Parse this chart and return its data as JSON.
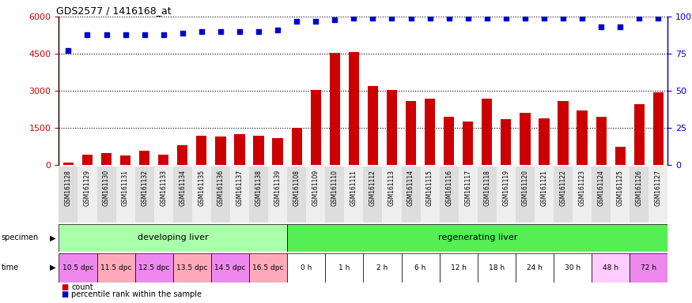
{
  "title": "GDS2577 / 1416168_at",
  "samples": [
    "GSM161128",
    "GSM161129",
    "GSM161130",
    "GSM161131",
    "GSM161132",
    "GSM161133",
    "GSM161134",
    "GSM161135",
    "GSM161136",
    "GSM161137",
    "GSM161138",
    "GSM161139",
    "GSM161108",
    "GSM161109",
    "GSM161110",
    "GSM161111",
    "GSM161112",
    "GSM161113",
    "GSM161114",
    "GSM161115",
    "GSM161116",
    "GSM161117",
    "GSM161118",
    "GSM161119",
    "GSM161120",
    "GSM161121",
    "GSM161122",
    "GSM161123",
    "GSM161124",
    "GSM161125",
    "GSM161126",
    "GSM161127"
  ],
  "counts": [
    120,
    420,
    500,
    380,
    580,
    430,
    800,
    1200,
    1150,
    1250,
    1200,
    1100,
    1500,
    3050,
    4550,
    4580,
    3200,
    3050,
    2600,
    2700,
    1950,
    1750,
    2700,
    1850,
    2100,
    1900,
    2600,
    2200,
    1950,
    750,
    2450,
    2950
  ],
  "percentile_ranks": [
    77,
    88,
    88,
    88,
    88,
    88,
    89,
    90,
    90,
    90,
    90,
    91,
    97,
    97,
    98,
    99,
    99,
    99,
    99,
    99,
    99,
    99,
    99,
    99,
    99,
    99,
    99,
    99,
    93,
    93,
    99,
    99
  ],
  "specimen_groups": [
    {
      "label": "developing liver",
      "color": "#aaffaa",
      "start": 0,
      "end": 12
    },
    {
      "label": "regenerating liver",
      "color": "#55ee55",
      "start": 12,
      "end": 32
    }
  ],
  "time_labels": [
    {
      "label": "10.5 dpc",
      "start": 0,
      "end": 2,
      "color": "#ee88ee"
    },
    {
      "label": "11.5 dpc",
      "start": 2,
      "end": 4,
      "color": "#ffaabb"
    },
    {
      "label": "12.5 dpc",
      "start": 4,
      "end": 6,
      "color": "#ee88ee"
    },
    {
      "label": "13.5 dpc",
      "start": 6,
      "end": 8,
      "color": "#ffaabb"
    },
    {
      "label": "14.5 dpc",
      "start": 8,
      "end": 10,
      "color": "#ee88ee"
    },
    {
      "label": "16.5 dpc",
      "start": 10,
      "end": 12,
      "color": "#ffaabb"
    },
    {
      "label": "0 h",
      "start": 12,
      "end": 14,
      "color": "#ffffff"
    },
    {
      "label": "1 h",
      "start": 14,
      "end": 16,
      "color": "#ffffff"
    },
    {
      "label": "2 h",
      "start": 16,
      "end": 18,
      "color": "#ffffff"
    },
    {
      "label": "6 h",
      "start": 18,
      "end": 20,
      "color": "#ffffff"
    },
    {
      "label": "12 h",
      "start": 20,
      "end": 22,
      "color": "#ffffff"
    },
    {
      "label": "18 h",
      "start": 22,
      "end": 24,
      "color": "#ffffff"
    },
    {
      "label": "24 h",
      "start": 24,
      "end": 26,
      "color": "#ffffff"
    },
    {
      "label": "30 h",
      "start": 26,
      "end": 28,
      "color": "#ffffff"
    },
    {
      "label": "48 h",
      "start": 28,
      "end": 30,
      "color": "#ffccff"
    },
    {
      "label": "72 h",
      "start": 30,
      "end": 32,
      "color": "#ee88ee"
    }
  ],
  "bar_color": "#cc0000",
  "dot_color": "#0000cc",
  "ylim_left": [
    0,
    6000
  ],
  "ylim_right": [
    0,
    100
  ],
  "yticks_left": [
    0,
    1500,
    3000,
    4500,
    6000
  ],
  "yticks_right": [
    0,
    25,
    50,
    75,
    100
  ],
  "bg_color": "#ffffff",
  "tick_bg_even": "#dddddd",
  "tick_bg_odd": "#eeeeee",
  "legend_count_label": "count",
  "legend_pct_label": "percentile rank within the sample"
}
